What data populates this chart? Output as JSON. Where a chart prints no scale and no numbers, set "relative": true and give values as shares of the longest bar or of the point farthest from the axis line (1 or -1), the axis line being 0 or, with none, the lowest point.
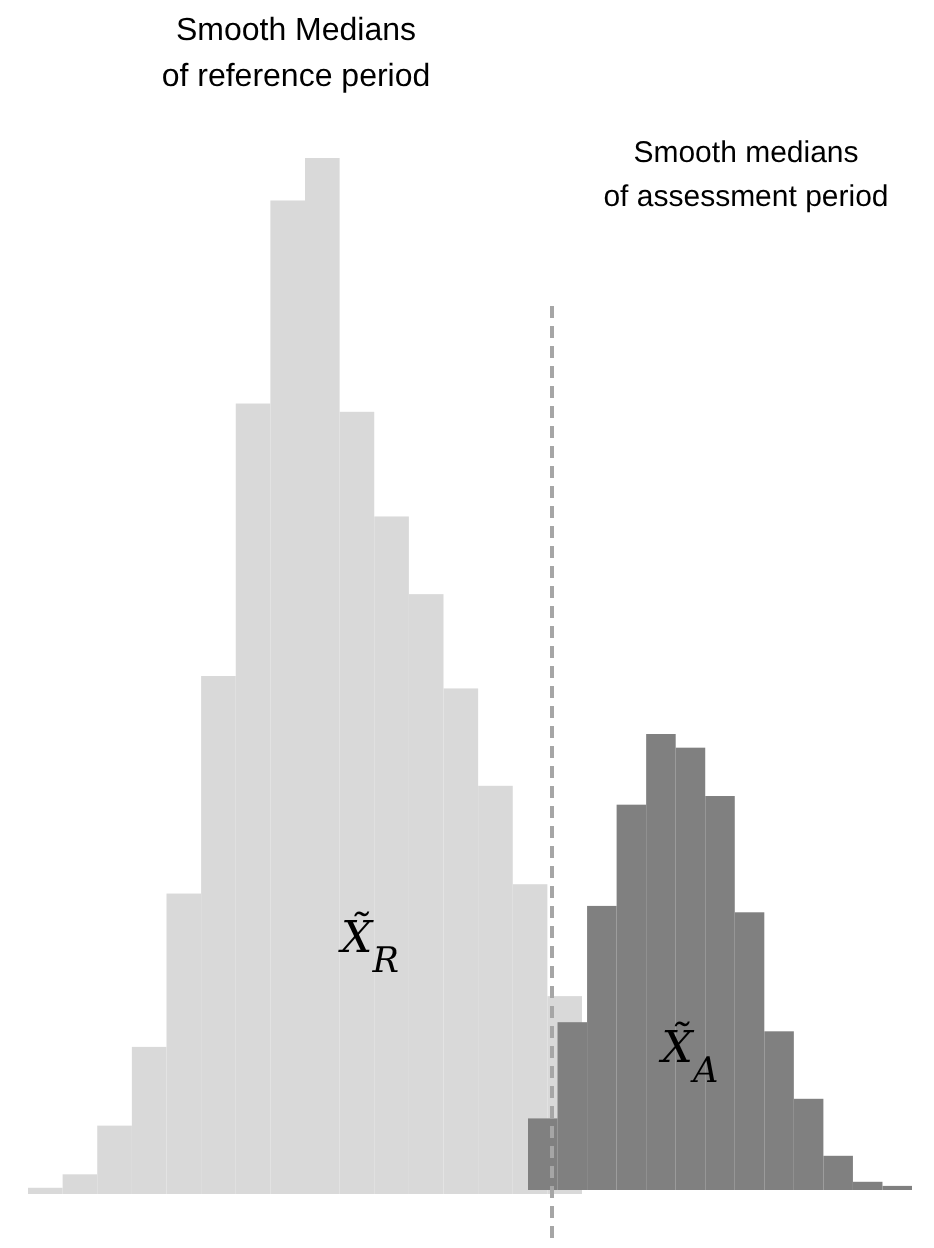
{
  "chart_data": [
    {
      "type": "bar",
      "relative": true,
      "title": "Smooth Medians\nof reference period",
      "categories": [
        null,
        null,
        null,
        null,
        null,
        null,
        null,
        null,
        null,
        null,
        null,
        null,
        null,
        null,
        null,
        null
      ],
      "series": [
        {
          "color": "#d9d9d9",
          "values": [
            0.006,
            0.019,
            0.066,
            0.142,
            0.29,
            0.5,
            0.763,
            0.959,
            1,
            0.755,
            0.654,
            0.579,
            0.488,
            0.394,
            0.299,
            0.191
          ]
        }
      ],
      "annotations": [
        "X̃$_{R}$"
      ]
    },
    {
      "type": "bar",
      "relative": true,
      "title": "Smooth medians\nof assessment period",
      "categories": [
        null,
        null,
        null,
        null,
        null,
        null,
        null,
        null,
        null,
        null,
        null,
        null,
        null
      ],
      "series": [
        {
          "color": "#808080",
          "values": [
            0.157,
            0.368,
            0.623,
            0.845,
            1,
            0.97,
            0.864,
            0.609,
            0.348,
            0.2,
            0.075,
            0.018,
            0.009
          ]
        }
      ],
      "annotations": [
        "X̃$_{A}$"
      ]
    }
  ]
}
